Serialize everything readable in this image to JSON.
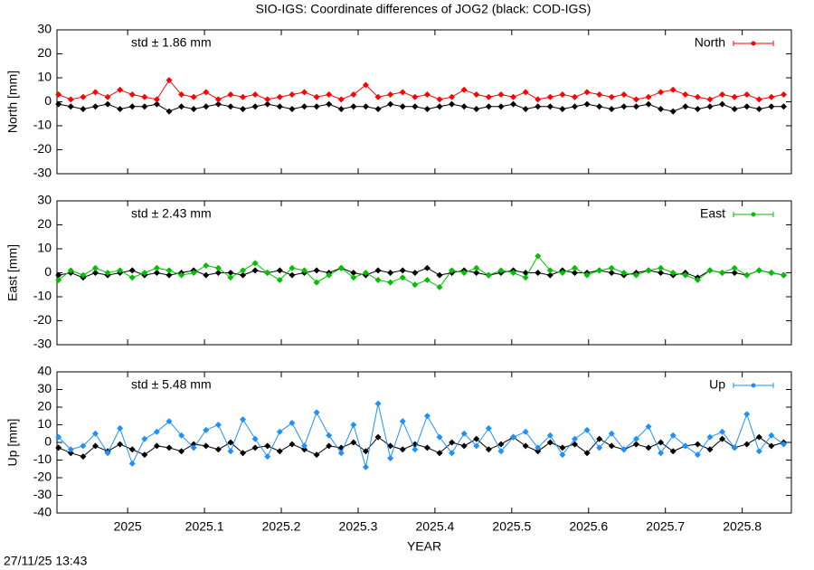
{
  "title": "SIO-IGS: Coordinate differences of JOG2 (black: COD-IGS)",
  "timestamp": "27/11/25 13:43",
  "chart_data": [
    {
      "type": "line",
      "ylabel": "North [mm]",
      "annotation": "std ± 1.86 mm",
      "xlim": [
        2024.908,
        2025.864
      ],
      "xticks": [
        2025,
        2025.1,
        2025.2,
        2025.3,
        2025.4,
        2025.5,
        2025.6,
        2025.7,
        2025.8
      ],
      "ylim": [
        -30,
        30
      ],
      "yticks": [
        -30,
        -20,
        -10,
        0,
        10,
        20,
        30
      ],
      "legend": "top-right",
      "x": [
        2024.91,
        2024.926,
        2024.942,
        2024.958,
        2024.974,
        2024.99,
        2025.006,
        2025.022,
        2025.038,
        2025.054,
        2025.07,
        2025.086,
        2025.102,
        2025.118,
        2025.134,
        2025.15,
        2025.166,
        2025.182,
        2025.198,
        2025.214,
        2025.23,
        2025.246,
        2025.262,
        2025.278,
        2025.294,
        2025.31,
        2025.326,
        2025.342,
        2025.358,
        2025.374,
        2025.39,
        2025.406,
        2025.422,
        2025.438,
        2025.454,
        2025.47,
        2025.486,
        2025.502,
        2025.518,
        2025.534,
        2025.55,
        2025.566,
        2025.582,
        2025.598,
        2025.614,
        2025.63,
        2025.646,
        2025.662,
        2025.678,
        2025.694,
        2025.71,
        2025.726,
        2025.742,
        2025.758,
        2025.774,
        2025.79,
        2025.806,
        2025.822,
        2025.838,
        2025.854
      ],
      "series": [
        {
          "name": "North",
          "color": "#ff0000",
          "values": [
            3,
            1,
            2,
            4,
            2,
            5,
            3,
            2,
            1,
            9,
            3,
            2,
            4,
            1,
            3,
            2,
            3,
            1,
            2,
            3,
            4,
            2,
            3,
            1,
            3,
            7,
            2,
            3,
            4,
            2,
            3,
            1,
            2,
            5,
            3,
            2,
            3,
            2,
            4,
            1,
            2,
            3,
            2,
            4,
            3,
            2,
            3,
            1,
            2,
            4,
            5,
            3,
            2,
            1,
            3,
            2,
            3,
            1,
            2,
            3
          ]
        },
        {
          "color": "#000000",
          "values": [
            -1,
            -2,
            -3,
            -2,
            -1,
            -3,
            -2,
            -2,
            -1,
            -4,
            -2,
            -3,
            -2,
            -1,
            -2,
            -3,
            -2,
            -1,
            -2,
            -3,
            -2,
            -2,
            -1,
            -3,
            -2,
            -2,
            -3,
            -1,
            -2,
            -2,
            -3,
            -2,
            -1,
            -2,
            -3,
            -2,
            -2,
            -1,
            -3,
            -2,
            -2,
            -3,
            -2,
            -1,
            -2,
            -3,
            -2,
            -2,
            -1,
            -3,
            -4,
            -2,
            -3,
            -2,
            -1,
            -3,
            -2,
            -3,
            -2,
            -2
          ]
        }
      ]
    },
    {
      "type": "line",
      "ylabel": "East [mm]",
      "annotation": "std ± 2.43 mm",
      "xlim": [
        2024.908,
        2025.864
      ],
      "xticks": [
        2025,
        2025.1,
        2025.2,
        2025.3,
        2025.4,
        2025.5,
        2025.6,
        2025.7,
        2025.8
      ],
      "ylim": [
        -30,
        30
      ],
      "yticks": [
        -30,
        -20,
        -10,
        0,
        10,
        20,
        30
      ],
      "legend": "top-right",
      "x": [
        2024.91,
        2024.926,
        2024.942,
        2024.958,
        2024.974,
        2024.99,
        2025.006,
        2025.022,
        2025.038,
        2025.054,
        2025.07,
        2025.086,
        2025.102,
        2025.118,
        2025.134,
        2025.15,
        2025.166,
        2025.182,
        2025.198,
        2025.214,
        2025.23,
        2025.246,
        2025.262,
        2025.278,
        2025.294,
        2025.31,
        2025.326,
        2025.342,
        2025.358,
        2025.374,
        2025.39,
        2025.406,
        2025.422,
        2025.438,
        2025.454,
        2025.47,
        2025.486,
        2025.502,
        2025.518,
        2025.534,
        2025.55,
        2025.566,
        2025.582,
        2025.598,
        2025.614,
        2025.63,
        2025.646,
        2025.662,
        2025.678,
        2025.694,
        2025.71,
        2025.726,
        2025.742,
        2025.758,
        2025.774,
        2025.79,
        2025.806,
        2025.822,
        2025.838,
        2025.854
      ],
      "series": [
        {
          "name": "East",
          "color": "#00c000",
          "values": [
            -3,
            1,
            -1,
            2,
            0,
            1,
            -2,
            0,
            2,
            1,
            -1,
            0,
            3,
            2,
            -2,
            1,
            4,
            0,
            -3,
            2,
            1,
            -4,
            -1,
            2,
            -2,
            0,
            -3,
            -4,
            -2,
            -5,
            -3,
            -6,
            1,
            0,
            2,
            -1,
            1,
            0,
            -2,
            7,
            1,
            0,
            2,
            -1,
            1,
            2,
            0,
            -1,
            1,
            2,
            0,
            -1,
            -3,
            1,
            0,
            2,
            -1,
            1,
            0,
            -1
          ]
        },
        {
          "color": "#000000",
          "values": [
            -1,
            0,
            -2,
            0,
            -1,
            0,
            1,
            -1,
            0,
            -1,
            0,
            1,
            -1,
            0,
            0,
            -1,
            1,
            0,
            1,
            -1,
            0,
            1,
            0,
            2,
            0,
            -1,
            1,
            0,
            1,
            0,
            2,
            -1,
            0,
            1,
            0,
            -1,
            0,
            1,
            0,
            0,
            -1,
            1,
            0,
            0,
            1,
            0,
            -1,
            0,
            1,
            0,
            -1,
            0,
            -2,
            1,
            0,
            0,
            -1,
            1,
            0,
            -1
          ]
        }
      ]
    },
    {
      "type": "line",
      "ylabel": "Up [mm]",
      "annotation": "std ± 5.48 mm",
      "xlabel": "YEAR",
      "xlim": [
        2024.908,
        2025.864
      ],
      "xticks": [
        2025,
        2025.1,
        2025.2,
        2025.3,
        2025.4,
        2025.5,
        2025.6,
        2025.7,
        2025.8
      ],
      "ylim": [
        -40,
        40
      ],
      "yticks": [
        -40,
        -30,
        -20,
        -10,
        0,
        10,
        20,
        30,
        40
      ],
      "legend": "top-right",
      "x": [
        2024.91,
        2024.926,
        2024.942,
        2024.958,
        2024.974,
        2024.99,
        2025.006,
        2025.022,
        2025.038,
        2025.054,
        2025.07,
        2025.086,
        2025.102,
        2025.118,
        2025.134,
        2025.15,
        2025.166,
        2025.182,
        2025.198,
        2025.214,
        2025.23,
        2025.246,
        2025.262,
        2025.278,
        2025.294,
        2025.31,
        2025.326,
        2025.342,
        2025.358,
        2025.374,
        2025.39,
        2025.406,
        2025.422,
        2025.438,
        2025.454,
        2025.47,
        2025.486,
        2025.502,
        2025.518,
        2025.534,
        2025.55,
        2025.566,
        2025.582,
        2025.598,
        2025.614,
        2025.63,
        2025.646,
        2025.662,
        2025.678,
        2025.694,
        2025.71,
        2025.726,
        2025.742,
        2025.758,
        2025.774,
        2025.79,
        2025.806,
        2025.822,
        2025.838,
        2025.854
      ],
      "series": [
        {
          "name": "Up",
          "color": "#1e90ff",
          "values": [
            3,
            -4,
            -2,
            5,
            -6,
            8,
            -12,
            2,
            6,
            12,
            4,
            -3,
            7,
            10,
            -5,
            13,
            2,
            -8,
            6,
            11,
            -2,
            17,
            4,
            -6,
            10,
            -14,
            22,
            -9,
            12,
            -4,
            15,
            3,
            -6,
            5,
            -2,
            8,
            -5,
            3,
            6,
            -3,
            4,
            -7,
            2,
            7,
            -3,
            5,
            -4,
            2,
            9,
            -6,
            4,
            -2,
            -7,
            3,
            6,
            -3,
            16,
            -5,
            4,
            -1
          ]
        },
        {
          "color": "#000000",
          "values": [
            -3,
            -6,
            -8,
            -2,
            -5,
            -1,
            -4,
            -7,
            -2,
            -3,
            -5,
            -1,
            -2,
            -4,
            0,
            -6,
            -3,
            -2,
            -5,
            -1,
            -4,
            -7,
            -2,
            -3,
            0,
            -5,
            3,
            -2,
            -4,
            -1,
            -3,
            -6,
            0,
            -2,
            2,
            -4,
            -1,
            3,
            -2,
            -5,
            0,
            -3,
            -1,
            -6,
            2,
            -2,
            -4,
            -1,
            -3,
            0,
            -5,
            -2,
            -1,
            -4,
            2,
            -3,
            -1,
            3,
            -2,
            0
          ]
        }
      ]
    }
  ]
}
